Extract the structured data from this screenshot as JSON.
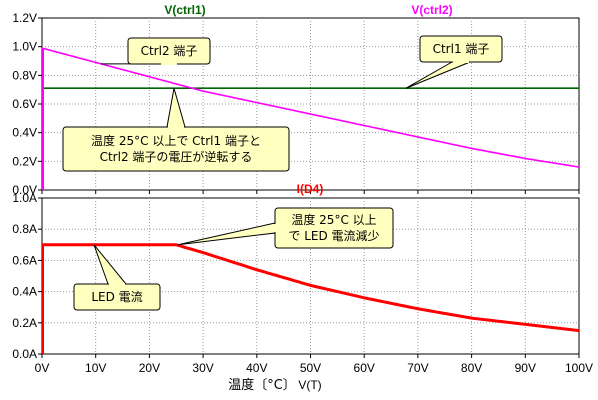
{
  "chart_data": [
    {
      "type": "line",
      "ylim": [
        0,
        1.2
      ],
      "xlim": [
        0,
        100
      ],
      "y_ticks": [
        "0.0V",
        "0.2V",
        "0.4V",
        "0.6V",
        "0.8V",
        "1.0V",
        "1.2V"
      ],
      "y_tick_values": [
        0,
        0.2,
        0.4,
        0.6,
        0.8,
        1.0,
        1.2
      ],
      "grid": true,
      "series": [
        {
          "name": "V(ctrl1)",
          "color": "#006400",
          "x": [
            0,
            10,
            20,
            30,
            40,
            50,
            60,
            70,
            80,
            90,
            100
          ],
          "values": [
            0.71,
            0.71,
            0.71,
            0.71,
            0.71,
            0.71,
            0.71,
            0.71,
            0.71,
            0.71,
            0.71
          ]
        },
        {
          "name": "V(ctrl2)",
          "color": "#ff00ff",
          "x": [
            0,
            10,
            20,
            30,
            40,
            50,
            60,
            70,
            80,
            90,
            100
          ],
          "values": [
            0.99,
            0.89,
            0.79,
            0.69,
            0.61,
            0.53,
            0.45,
            0.37,
            0.29,
            0.22,
            0.16
          ]
        }
      ],
      "annotations": [
        {
          "id": "a1",
          "lines": [
            "Ctrl2 端子"
          ]
        },
        {
          "id": "a2",
          "lines": [
            "Ctrl1 端子"
          ]
        },
        {
          "id": "a3",
          "lines": [
            "温度 25°C 以上で Ctrl1 端子と",
            "Ctrl2 端子の電圧が逆転する"
          ]
        }
      ]
    },
    {
      "type": "line",
      "ylim": [
        0,
        1.0
      ],
      "xlim": [
        0,
        100
      ],
      "y_ticks": [
        "0.0A",
        "0.2A",
        "0.4A",
        "0.6A",
        "0.8A",
        "1.0A"
      ],
      "y_tick_values": [
        0,
        0.2,
        0.4,
        0.6,
        0.8,
        1.0
      ],
      "x_ticks": [
        "0V",
        "10V",
        "20V",
        "30V",
        "40V",
        "50V",
        "60V",
        "70V",
        "80V",
        "90V",
        "100V"
      ],
      "x_tick_values": [
        0,
        10,
        20,
        30,
        40,
        50,
        60,
        70,
        80,
        90,
        100
      ],
      "xlabel": "V(T)",
      "xlabel_prefix": "温度〔°C〕",
      "grid": true,
      "series": [
        {
          "name": "I(D4)",
          "color": "#ff0000",
          "x": [
            0,
            5,
            10,
            15,
            20,
            25,
            30,
            40,
            50,
            60,
            70,
            80,
            90,
            100
          ],
          "values": [
            0.7,
            0.7,
            0.7,
            0.7,
            0.7,
            0.7,
            0.65,
            0.54,
            0.44,
            0.36,
            0.29,
            0.23,
            0.19,
            0.15
          ]
        }
      ],
      "annotations": [
        {
          "id": "b1",
          "lines": [
            "温度 25°C 以上",
            "で LED 電流減少"
          ]
        },
        {
          "id": "b2",
          "lines": [
            "LED 電流"
          ]
        }
      ]
    }
  ]
}
